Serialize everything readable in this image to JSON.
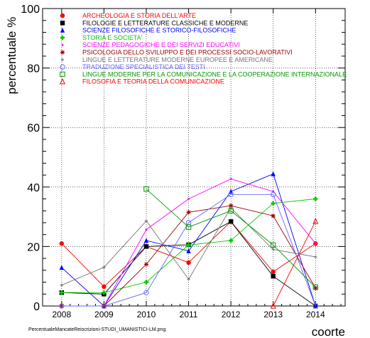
{
  "chart_data": {
    "type": "line",
    "title": "",
    "xlabel": "coorte",
    "ylabel": "percentuale %",
    "x": [
      2008,
      2009,
      2010,
      2011,
      2012,
      2013,
      2014
    ],
    "xlim": [
      2007.55,
      2014.7
    ],
    "ylim": [
      0,
      100
    ],
    "yticks": [
      0,
      20,
      40,
      60,
      80,
      100
    ],
    "grid": true,
    "legend_position": "top-left",
    "series": [
      {
        "name": "ARCHEOLOGIA E STORIA DELL'ARTE",
        "color": "#ff0000",
        "marker": "circle-filled",
        "values": [
          21,
          6.5,
          20,
          14.6,
          28.4,
          11.5,
          21
        ]
      },
      {
        "name": "FILOLOGIE E LETTERATURE CLASSICHE E MODERNE",
        "color": "#000000",
        "marker": "square-filled",
        "values": [
          4.5,
          4,
          20,
          20.6,
          28.4,
          10,
          0
        ]
      },
      {
        "name": "SCIENZE FILOSOFICHE E STORICO-FILOSOFICHE",
        "color": "#0000ff",
        "marker": "triangle-filled",
        "values": [
          12.9,
          0,
          22,
          18.5,
          38.5,
          44.4,
          0
        ]
      },
      {
        "name": "STORIA E SOCIETA'",
        "color": "#00cc00",
        "marker": "plus-filled",
        "values": [
          4.5,
          4.5,
          8,
          20.5,
          22,
          34.5,
          36
        ]
      },
      {
        "name": "SCIENZE PEDAGOGICHE E DEI SERVIZI EDUCATIVI",
        "color": "#ff00ff",
        "marker": "dot",
        "values": [
          0,
          0,
          25.7,
          36,
          42.7,
          38.5,
          21
        ]
      },
      {
        "name": "PSICOLOGIA DELLO SVILUPPO E DEI PROCESSI SOCIO-LAVORATIVI",
        "color": "#990000",
        "marker": "star",
        "values": [
          0,
          0,
          14,
          31.5,
          33.7,
          30.3,
          6
        ]
      },
      {
        "name": "LINGUE E LETTERATURE MODERNE EUROPEE E AMERICANE",
        "color": "#777777",
        "marker": "cross",
        "values": [
          7,
          13,
          28.6,
          9,
          33,
          19,
          16.5
        ]
      },
      {
        "name": "TRADUZIONE SPECIALISTICA DEI TESTI",
        "color": "#6666ff",
        "marker": "circle-open",
        "values": [
          0,
          0,
          4.5,
          28,
          37.5,
          37.5,
          0
        ]
      },
      {
        "name": "LINGUE MODERNE PER LA COMUNICAZIONE E LA COOPERAZIONE INTERNAZIONALE",
        "color": "#009900",
        "marker": "square-open",
        "values": [
          null,
          null,
          39.3,
          26.5,
          32,
          20.5,
          6.3
        ]
      },
      {
        "name": "FILOSOFIA E TEORIA DELLA COMUNICAZIONE",
        "color": "#ff0000",
        "marker": "triangle-open",
        "values": [
          null,
          null,
          null,
          null,
          null,
          0,
          28.5
        ]
      }
    ]
  },
  "footer_filename": "PercentualeMancateReiscrizioni-STUDI_UMANISTICI-LM.png"
}
